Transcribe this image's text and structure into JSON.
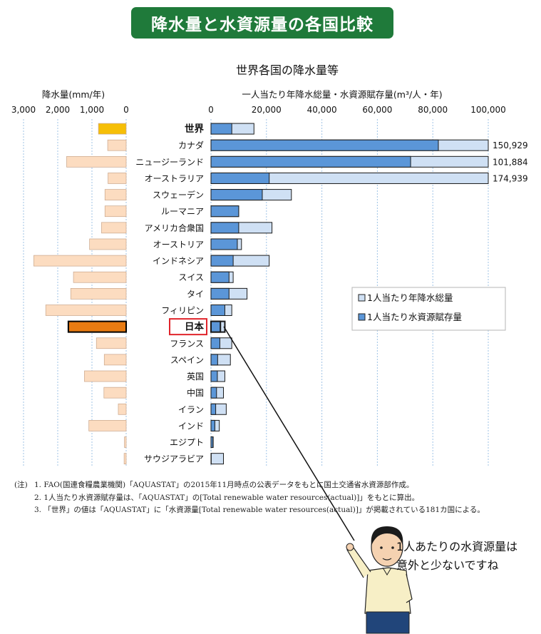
{
  "page": {
    "banner": "降水量と水資源量の各国比較",
    "speech_line1": "1人あたりの水資源量は",
    "speech_line2": "意外と少ないですね",
    "notes_prefix": "(注)",
    "notes": [
      "1. FAO(国連食糧農業機関)「AQUASTAT」の2015年11月時点の公表データをもとに国土交通省水資源部作成。",
      "2. 1人当たり水資源賦存量は、「AQUASTAT」の[Total renewable water resources(actual)]」をもとに算出。",
      "3. 「世界」の値は「AQUASTAT」に「水資源量[Total renewable water resources(actual)]」が掲載されている181カ国による。"
    ]
  },
  "chart_data": {
    "type": "bar",
    "title": "世界各国の降水量等",
    "categories": [
      "世界",
      "カナダ",
      "ニュージーランド",
      "オーストラリア",
      "スウェーデン",
      "ルーマニア",
      "アメリカ合衆国",
      "オーストリア",
      "インドネシア",
      "スイス",
      "タイ",
      "フィリピン",
      "日本",
      "フランス",
      "スペイン",
      "英国",
      "中国",
      "イラン",
      "インド",
      "エジプト",
      "サウジアラビア"
    ],
    "highlight_category": "日本",
    "left_panel": {
      "label": "降水量(mm/年)",
      "ticks": [
        "3,000",
        "2,000",
        "1,000",
        "0"
      ],
      "xlim": [
        3000,
        0
      ],
      "values": [
        810,
        540,
        1740,
        530,
        620,
        620,
        720,
        1070,
        2700,
        1540,
        1620,
        2350,
        1690,
        870,
        640,
        1220,
        650,
        230,
        1090,
        50,
        60
      ],
      "colors": {
        "default": "#fcdcc0",
        "world": "#f6bf07",
        "japan": "#e87b12"
      }
    },
    "right_panel": {
      "label": "一人当たり年降水総量・水資源賦存量(m³/人・年)",
      "ticks": [
        "0",
        "20,000",
        "40,000",
        "60,000",
        "80,000",
        "100,000"
      ],
      "xlim": [
        0,
        100000
      ],
      "series": [
        {
          "name": "1人当たり年降水総量",
          "color": "#cfe0f4",
          "values": [
            15500,
            150929,
            101884,
            174939,
            29000,
            10000,
            22000,
            11000,
            21000,
            8000,
            13000,
            7500,
            5000,
            7500,
            7000,
            5000,
            4500,
            5500,
            3000,
            800,
            4500
          ]
        },
        {
          "name": "1人当たり水資源賦存量",
          "color": "#5b96d8",
          "values": [
            7500,
            82000,
            72000,
            21000,
            18500,
            10000,
            10000,
            9500,
            8000,
            6500,
            6500,
            5000,
            3400,
            3200,
            2400,
            2300,
            2000,
            1700,
            1400,
            700,
            100
          ]
        }
      ],
      "overflow_labels": {
        "カナダ": "150,929",
        "ニュージーランド": "101,884",
        "オーストラリア": "174,939"
      }
    }
  }
}
